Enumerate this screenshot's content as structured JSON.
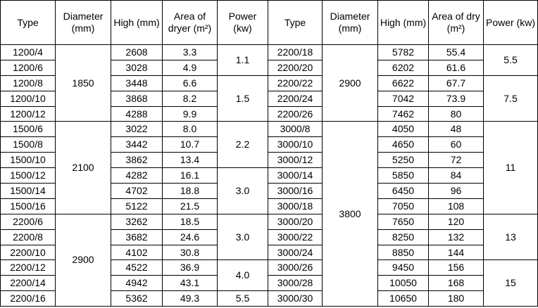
{
  "table": {
    "header": [
      "Type",
      "Diameter (mm)",
      "High (mm)",
      "Area of dryer (m²)",
      "Power (kw)",
      "Type",
      "Diameter (mm)",
      "High (mm)",
      "Area of dry (m²)",
      "Power (kw)"
    ],
    "rows": [
      [
        "1200/4",
        "1850",
        "2608",
        "3.3",
        "1.1",
        "2200/18",
        "2900",
        "5782",
        "55.4",
        "5.5"
      ],
      [
        "1200/6",
        "3028",
        "4.9",
        "2200/20",
        "6202",
        "61.6"
      ],
      [
        "1200/8",
        "3448",
        "6.6",
        "1.5",
        "2200/22",
        "6622",
        "67.7",
        "7.5"
      ],
      [
        "1200/10",
        "3868",
        "8.2",
        "2200/24",
        "7042",
        "73.9"
      ],
      [
        "1200/12",
        "4288",
        "9.9",
        "2200/26",
        "7462",
        "80"
      ],
      [
        "1500/6",
        "2100",
        "3022",
        "8.0",
        "2.2",
        "3000/8",
        "3800",
        "4050",
        "48",
        "11"
      ],
      [
        "1500/8",
        "3442",
        "10.7",
        "3000/10",
        "4650",
        "60"
      ],
      [
        "1500/10",
        "3862",
        "13.4",
        "3000/12",
        "5250",
        "72"
      ],
      [
        "1500/12",
        "4282",
        "16.1",
        "3.0",
        "3000/14",
        "5850",
        "84"
      ],
      [
        "1500/14",
        "4702",
        "18.8",
        "3000/16",
        "6450",
        "96"
      ],
      [
        "1500/16",
        "5122",
        "21.5",
        "3000/18",
        "7050",
        "108"
      ],
      [
        "2200/6",
        "2900",
        "3262",
        "18.5",
        "3.0",
        "3000/20",
        "7650",
        "120",
        "13"
      ],
      [
        "2200/8",
        "3682",
        "24.6",
        "3000/22",
        "8250",
        "132"
      ],
      [
        "2200/10",
        "4102",
        "30.8",
        "3000/24",
        "8850",
        "144"
      ],
      [
        "2200/12",
        "4522",
        "36.9",
        "4.0",
        "3000/26",
        "9450",
        "156",
        "15"
      ],
      [
        "2200/14",
        "4942",
        "43.1",
        "3000/28",
        "10050",
        "168"
      ],
      [
        "2200/16",
        "5362",
        "49.3",
        "5.5",
        "3000/30",
        "10650",
        "180"
      ]
    ]
  }
}
